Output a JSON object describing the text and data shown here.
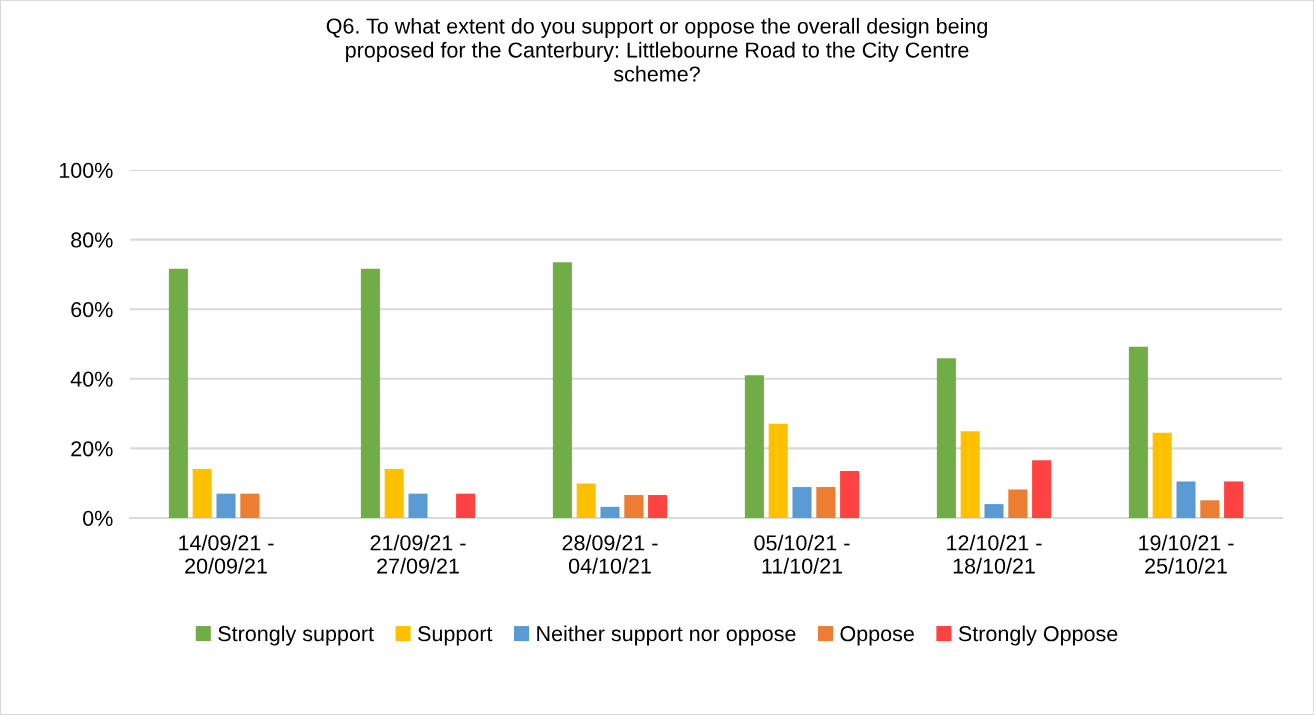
{
  "chart_data": {
    "type": "bar",
    "title": "Q6. To what extent do you support or oppose the overall design being\nproposed for the Canterbury: Littlebourne Road to the City Centre\nscheme?",
    "categories": [
      "14/09/21 -\n20/09/21",
      "21/09/21 -\n27/09/21",
      "28/09/21 -\n04/10/21",
      "05/10/21 -\n11/10/21",
      "12/10/21 -\n18/10/21",
      "19/10/21 -\n25/10/21"
    ],
    "series": [
      {
        "name": "Strongly support",
        "color": "#70ad47",
        "values": [
          71.6,
          71.6,
          73.5,
          41,
          45.9,
          49.2
        ]
      },
      {
        "name": "Support",
        "color": "#ffc000",
        "values": [
          14.1,
          14.1,
          9.9,
          27.1,
          24.9,
          24.5
        ]
      },
      {
        "name": "Neither support nor oppose",
        "color": "#5b9bd5",
        "values": [
          7,
          7,
          3.2,
          8.9,
          4,
          10.5
        ]
      },
      {
        "name": "Oppose",
        "color": "#ed7d31",
        "values": [
          7,
          0,
          6.6,
          8.9,
          8.2,
          5.1
        ]
      },
      {
        "name": "Strongly Oppose",
        "color": "#ff4343",
        "values": [
          0,
          7,
          6.6,
          13.5,
          16.6,
          10.5
        ]
      }
    ],
    "ylim": [
      0,
      100
    ],
    "yticks": [
      {
        "value": 0,
        "label": "0%"
      },
      {
        "value": 20,
        "label": "20%"
      },
      {
        "value": 40,
        "label": "40%"
      },
      {
        "value": 60,
        "label": "60%"
      },
      {
        "value": 80,
        "label": "80%"
      },
      {
        "value": 100,
        "label": "100%"
      }
    ],
    "grid": "y",
    "legend": "bottom"
  }
}
